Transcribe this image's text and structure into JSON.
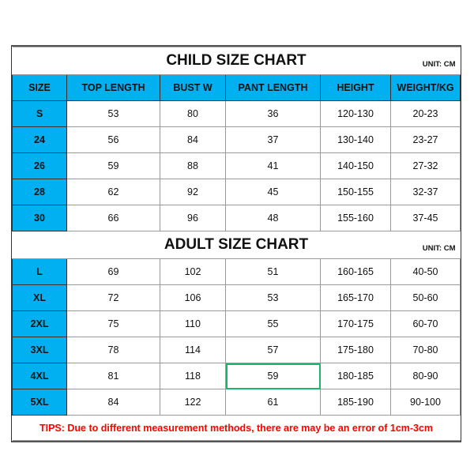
{
  "child": {
    "title": "CHILD SIZE CHART",
    "unit": "UNIT: CM",
    "headers": [
      "SIZE",
      "TOP LENGTH",
      "BUST W",
      "PANT LENGTH",
      "HEIGHT",
      "WEIGHT/KG"
    ],
    "rows": [
      [
        "S",
        "53",
        "80",
        "36",
        "120-130",
        "20-23"
      ],
      [
        "24",
        "56",
        "84",
        "37",
        "130-140",
        "23-27"
      ],
      [
        "26",
        "59",
        "88",
        "41",
        "140-150",
        "27-32"
      ],
      [
        "28",
        "62",
        "92",
        "45",
        "150-155",
        "32-37"
      ],
      [
        "30",
        "66",
        "96",
        "48",
        "155-160",
        "37-45"
      ]
    ]
  },
  "adult": {
    "title": "ADULT SIZE CHART",
    "unit": "UNIT: CM",
    "rows": [
      [
        "L",
        "69",
        "102",
        "51",
        "160-165",
        "40-50"
      ],
      [
        "XL",
        "72",
        "106",
        "53",
        "165-170",
        "50-60"
      ],
      [
        "2XL",
        "75",
        "110",
        "55",
        "170-175",
        "60-70"
      ],
      [
        "3XL",
        "78",
        "114",
        "57",
        "175-180",
        "70-80"
      ],
      [
        "4XL",
        "81",
        "118",
        "59",
        "180-185",
        "80-90"
      ],
      [
        "5XL",
        "84",
        "122",
        "61",
        "185-190",
        "90-100"
      ]
    ]
  },
  "tips": "TIPS: Due to different measurement methods, there are may be an error of 1cm-3cm",
  "colors": {
    "header": "#00b0f0",
    "tips": "#ff0000",
    "selection": "#1db56b"
  }
}
